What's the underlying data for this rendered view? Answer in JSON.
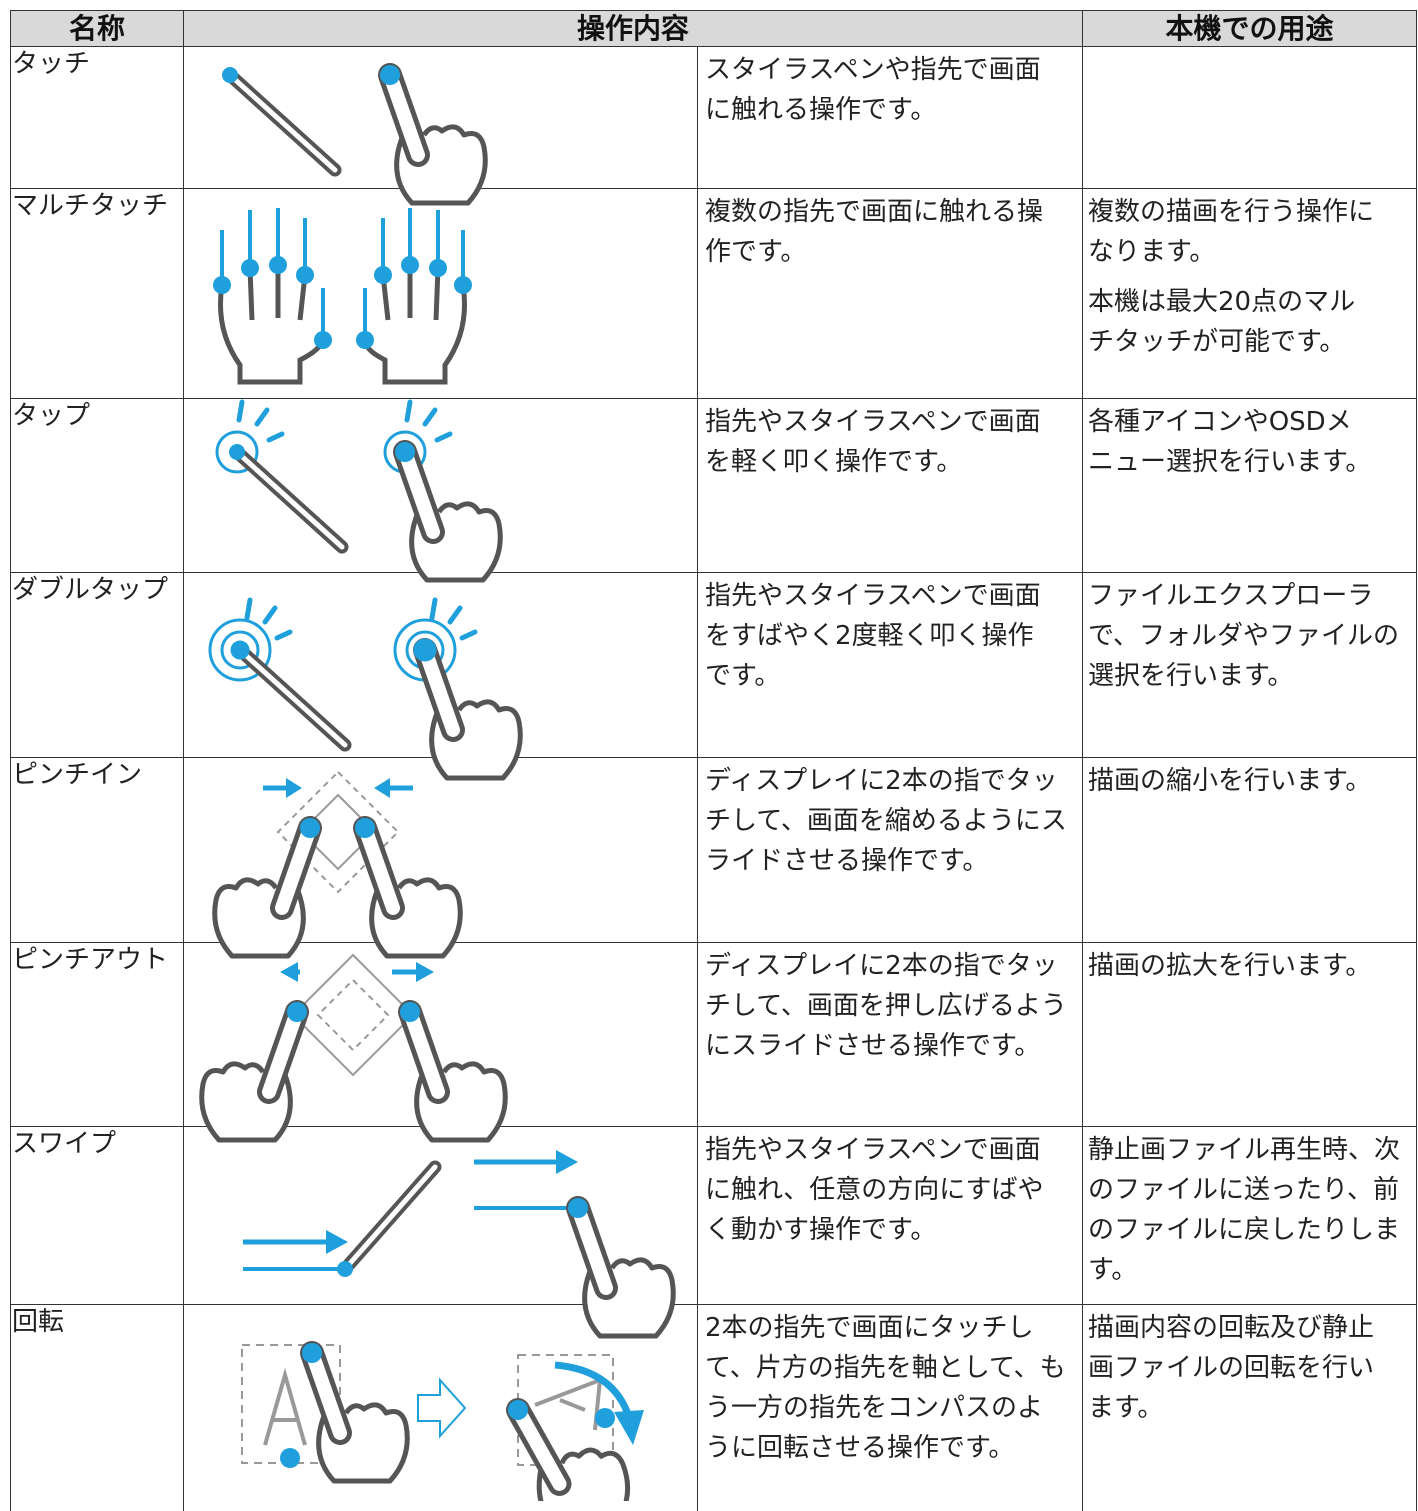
{
  "table": {
    "headers": [
      "名称",
      "操作内容",
      "本機での用途"
    ],
    "rows": [
      {
        "name": "タッチ",
        "description": [
          "スタイラスペンや指先で画面",
          "に触れる操作です。"
        ],
        "usage": []
      },
      {
        "name": "マルチタッチ",
        "description": [
          "複数の指先で画面に触れる操",
          "作です。"
        ],
        "usage": [
          [
            "複数の描画を行う操作に",
            "なります。"
          ],
          [
            "本機は最大20点のマル",
            "チタッチが可能です。"
          ]
        ]
      },
      {
        "name": "タップ",
        "description": [
          "指先やスタイラスペンで画面",
          "を軽く叩く操作です。"
        ],
        "usage": [
          [
            "各種アイコンやOSDメ",
            "ニュー選択を行います。"
          ]
        ]
      },
      {
        "name": "ダブルタップ",
        "description": [
          "指先やスタイラスペンで画面",
          "をすばやく2度軽く叩く操作",
          "です。"
        ],
        "usage": [
          [
            "ファイルエクスプローラ",
            "で、フォルダやファイルの",
            "選択を行います。"
          ]
        ]
      },
      {
        "name": "ピンチイン",
        "description": [
          "ディスプレイに2本の指でタッ",
          "チして、画面を縮めるようにス",
          "ライドさせる操作です。"
        ],
        "usage": [
          [
            "描画の縮小を行います。"
          ]
        ]
      },
      {
        "name": "ピンチアウト",
        "description": [
          "ディスプレイに2本の指でタッ",
          "チして、画面を押し広げるよう",
          "にスライドさせる操作です。"
        ],
        "usage": [
          [
            "描画の拡大を行います。"
          ]
        ]
      },
      {
        "name": "スワイプ",
        "description": [
          "指先やスタイラスペンで画面",
          "に触れ、任意の方向にすばや",
          "く動かす操作です。"
        ],
        "usage": [
          [
            "静止画ファイル再生時、次",
            "のファイルに送ったり、前",
            "のファイルに戻したりしま",
            "す。"
          ]
        ]
      },
      {
        "name": "回転",
        "description": [
          "2本の指先で画面にタッチし",
          "て、片方の指先を軸として、も",
          "う一方の指先をコンパスのよ",
          "うに回転させる操作です。"
        ],
        "usage": [
          [
            "描画内容の回転及び静止",
            "画ファイルの回転を行い",
            "ます。"
          ]
        ]
      }
    ]
  }
}
